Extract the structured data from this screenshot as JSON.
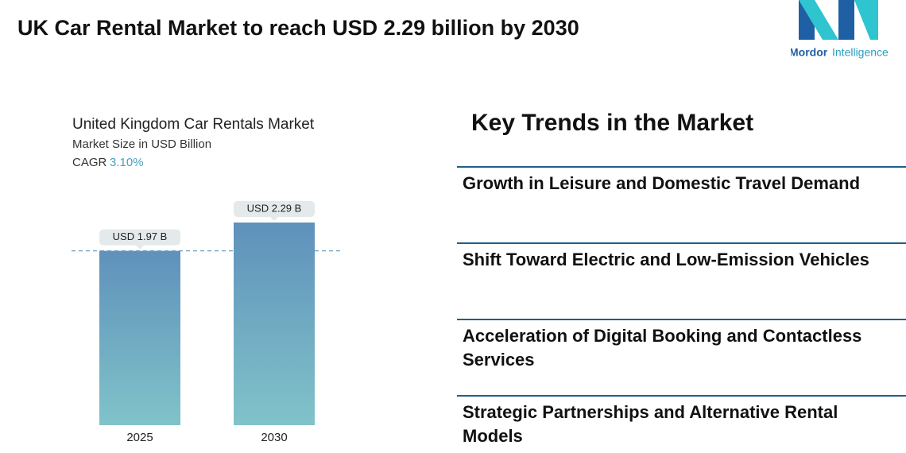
{
  "header": {
    "title": "UK Car Rental Market to reach USD 2.29 billion by 2030",
    "logo_brand": "Mordor",
    "logo_suffix": "Intelligence"
  },
  "chart_data": {
    "type": "bar",
    "title": "United Kingdom Car Rentals Market",
    "subtitle": "Market Size in USD Billion",
    "cagr_label": "CAGR",
    "cagr_value": "3.10%",
    "categories": [
      "2025",
      "2030"
    ],
    "values": [
      1.97,
      2.29
    ],
    "value_labels": [
      "USD 1.97 B",
      "USD 2.29 B"
    ],
    "color_top": "#5f91bb",
    "color_bottom": "#80c3c9"
  },
  "trends": {
    "title": "Key Trends in the Market",
    "items": [
      "Growth in Leisure and Domestic Travel Demand",
      "Shift Toward Electric and Low-Emission Vehicles",
      "Acceleration of Digital Booking and Contactless Services",
      "Strategic Partnerships and Alternative Rental Models"
    ]
  }
}
